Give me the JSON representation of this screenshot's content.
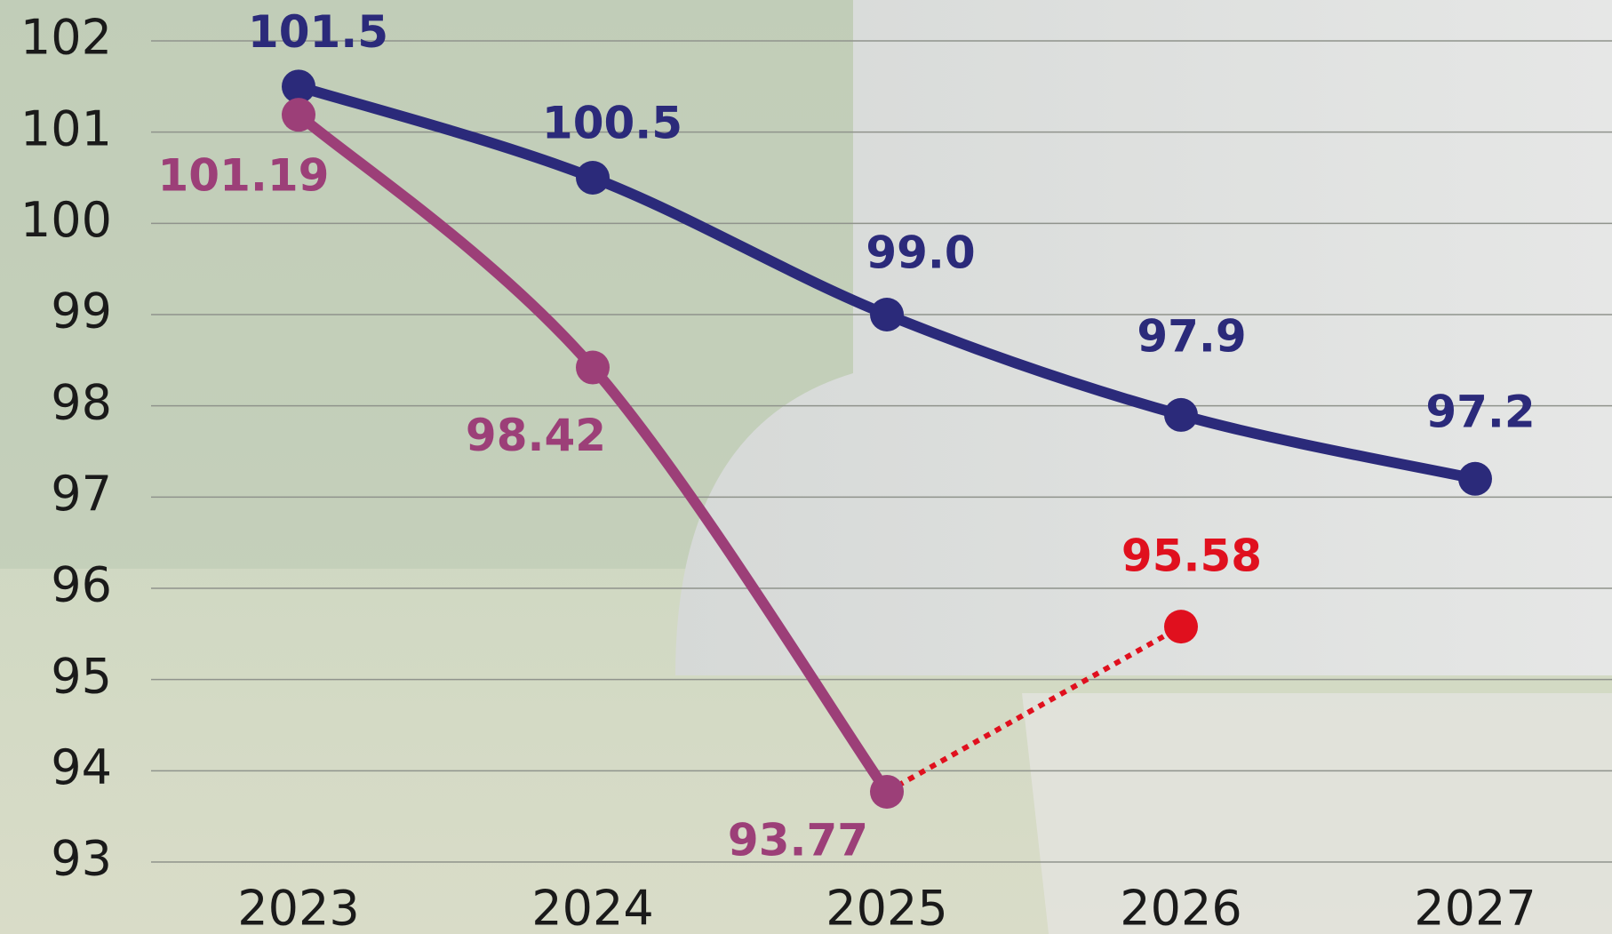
{
  "chart_data": {
    "type": "line",
    "categories": [
      "2023",
      "2024",
      "2025",
      "2026",
      "2027"
    ],
    "series": [
      {
        "color": "#2b2a7a",
        "values": [
          101.5,
          100.5,
          99,
          97.9,
          97.2
        ],
        "value_labels": [
          "101.5",
          "100.5",
          "99.0",
          "97.9",
          "97.2"
        ]
      },
      {
        "color": "#9c3f78",
        "values": [
          101.19,
          98.42,
          93.77,
          null,
          null
        ]
      },
      {
        "color": "#e0101e",
        "dashed": true,
        "values": [
          null,
          null,
          93.77,
          95.58,
          null
        ],
        "value_labels": [
          null,
          null,
          null,
          "95.58",
          null
        ]
      }
    ],
    "ylim": [
      93,
      102
    ],
    "yticks": [
      93,
      94,
      95,
      96,
      97,
      98,
      99,
      100,
      101,
      102
    ],
    "grid": true
  }
}
